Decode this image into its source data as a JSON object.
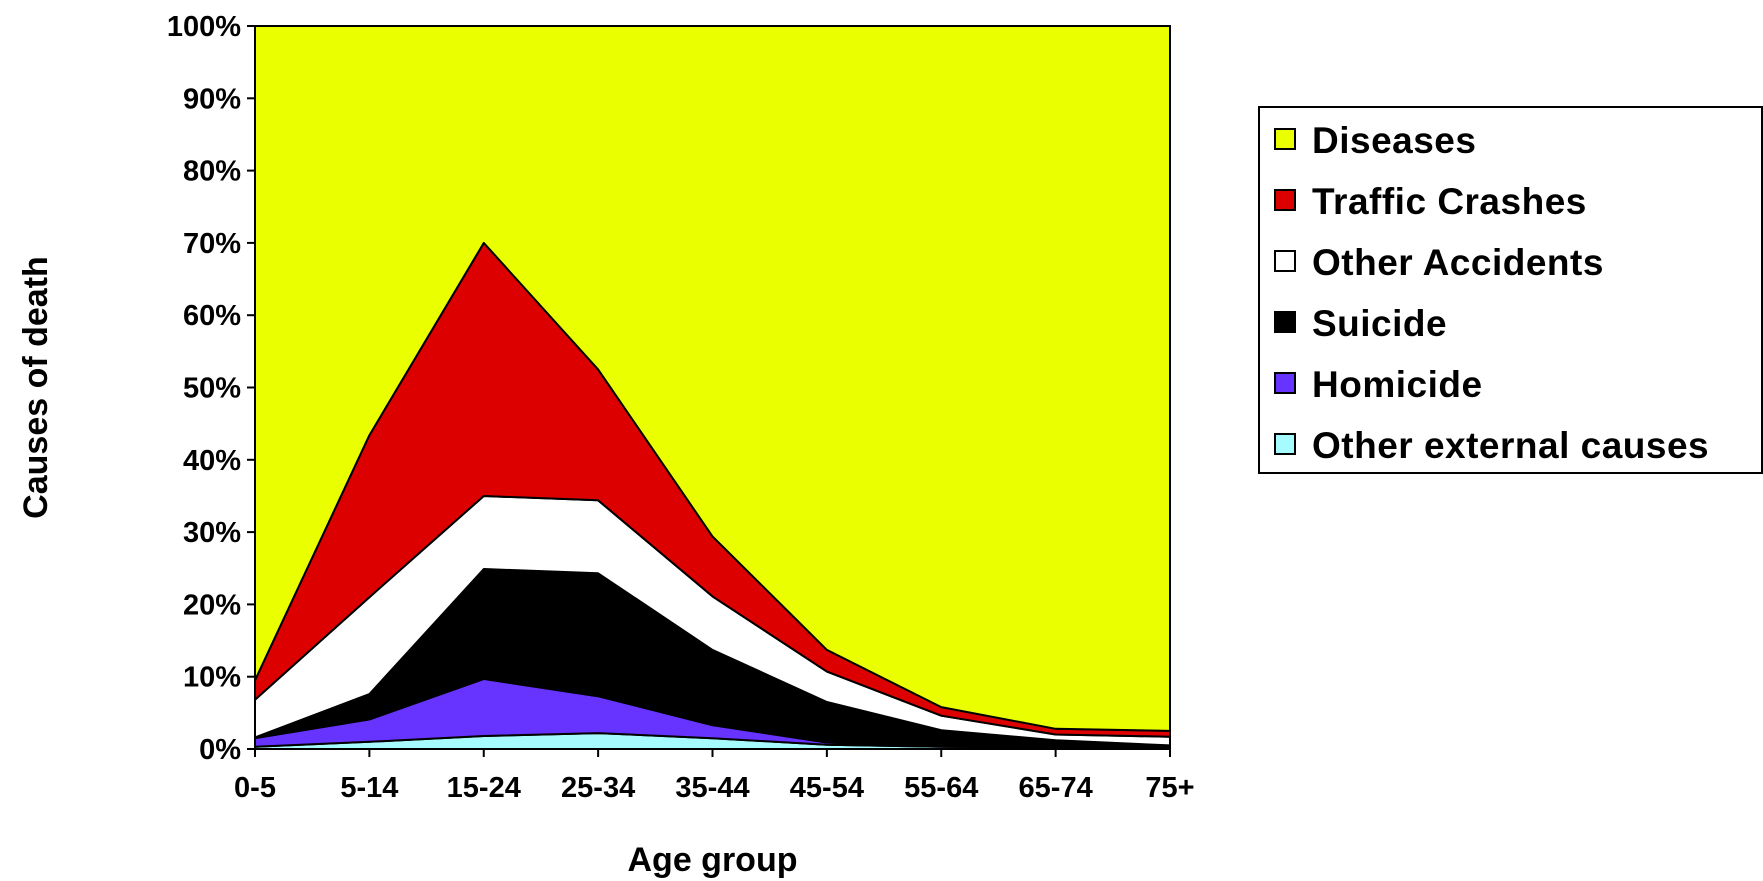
{
  "chart_data": {
    "type": "area",
    "stacked": true,
    "percent": true,
    "xlabel": "Age group",
    "ylabel": "Causes of death",
    "ylim": [
      0,
      100
    ],
    "yticks": [
      "0%",
      "10%",
      "20%",
      "30%",
      "40%",
      "50%",
      "60%",
      "70%",
      "80%",
      "90%",
      "100%"
    ],
    "categories": [
      "0-5",
      "5-14",
      "15-24",
      "25-34",
      "35-44",
      "45-54",
      "55-64",
      "65-74",
      "75+"
    ],
    "legend_position": "right",
    "grid": false,
    "series": [
      {
        "name": "Other external causes",
        "color": "#a6fbff",
        "values": [
          0.3,
          1.0,
          1.8,
          2.2,
          1.5,
          0.6,
          0.3,
          0.2,
          0.2
        ]
      },
      {
        "name": "Homicide",
        "color": "#6633ff",
        "values": [
          1.2,
          3.1,
          7.9,
          5.1,
          1.8,
          0.3,
          0.1,
          0.0,
          0.0
        ]
      },
      {
        "name": "Suicide",
        "color": "#000000",
        "values": [
          0.1,
          3.5,
          15.2,
          17.0,
          10.4,
          5.6,
          2.2,
          1.0,
          0.3
        ]
      },
      {
        "name": "Other Accidents",
        "color": "#ffffff",
        "values": [
          5.2,
          13.4,
          10.1,
          10.1,
          7.4,
          4.2,
          2.0,
          0.8,
          1.2
        ]
      },
      {
        "name": "Traffic Crashes",
        "color": "#dd0000",
        "values": [
          2.7,
          22.4,
          35.0,
          18.1,
          8.3,
          3.0,
          1.2,
          0.8,
          0.8
        ]
      },
      {
        "name": "Diseases",
        "color": "#eaff00",
        "values": [
          90.5,
          56.6,
          30.0,
          47.5,
          70.6,
          86.3,
          94.2,
          97.2,
          97.5
        ]
      }
    ],
    "legend": [
      {
        "label": "Diseases",
        "color": "#eaff00"
      },
      {
        "label": "Traffic Crashes",
        "color": "#dd0000"
      },
      {
        "label": "Other Accidents",
        "color": "#ffffff"
      },
      {
        "label": "Suicide",
        "color": "#000000"
      },
      {
        "label": "Homicide",
        "color": "#6633ff"
      },
      {
        "label": "Other external causes",
        "color": "#a6fbff"
      }
    ]
  }
}
